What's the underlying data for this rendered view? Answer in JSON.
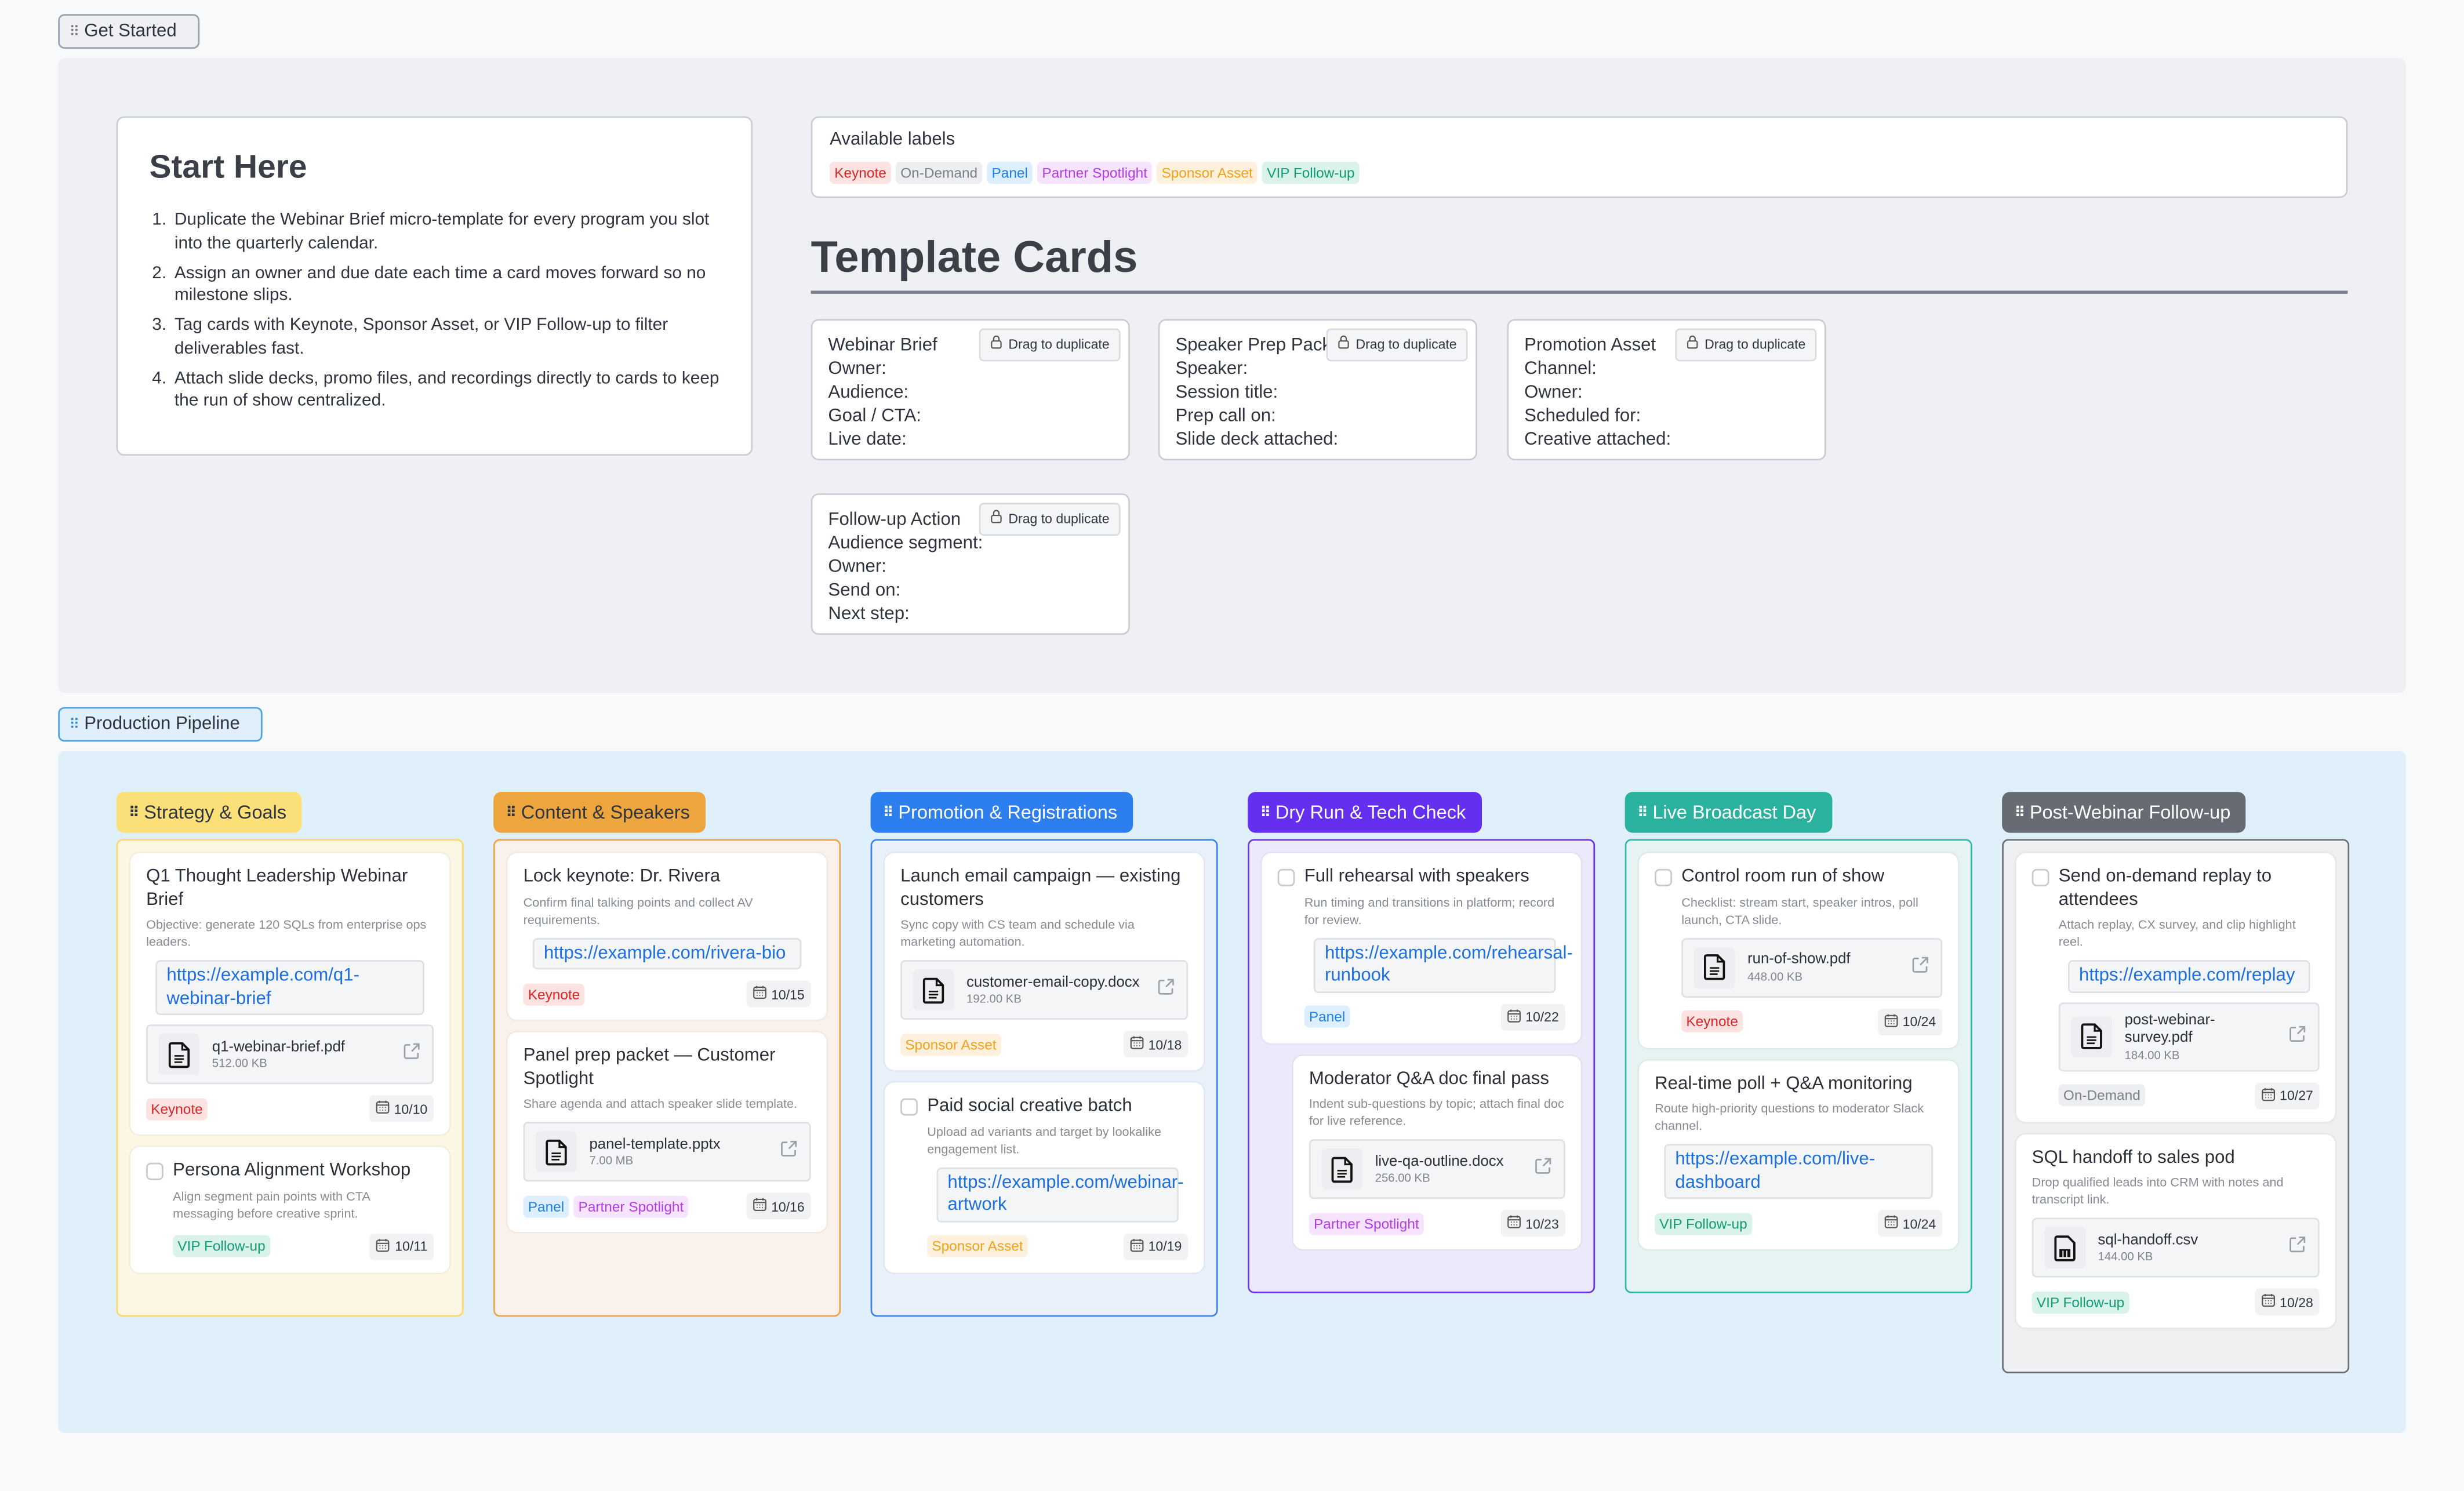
{
  "sections": {
    "get_started": "Get Started",
    "pipeline": "Production Pipeline"
  },
  "start_here": {
    "title": "Start Here",
    "steps": [
      "Duplicate the Webinar Brief micro-template for every program you slot into the quarterly calendar.",
      "Assign an owner and due date each time a card moves forward so no milestone slips.",
      "Tag cards with Keynote, Sponsor Asset, or VIP Follow-up to filter deliverables fast.",
      "Attach slide decks, promo files, and recordings directly to cards to keep the run of show centralized."
    ]
  },
  "labels": {
    "title": "Available labels",
    "items": [
      {
        "text": "Keynote",
        "kind": "keynote"
      },
      {
        "text": "On-Demand",
        "kind": "ondemand"
      },
      {
        "text": "Panel",
        "kind": "panel"
      },
      {
        "text": "Partner Spotlight",
        "kind": "partner"
      },
      {
        "text": "Sponsor Asset",
        "kind": "sponsor"
      },
      {
        "text": "VIP Follow-up",
        "kind": "vip"
      }
    ]
  },
  "template_cards": {
    "heading": "Template Cards",
    "drag_label": "Drag to duplicate",
    "cards": [
      {
        "title": "Webinar Brief",
        "fields": [
          "Owner:",
          "Audience:",
          "Goal / CTA:",
          "Live date:"
        ]
      },
      {
        "title": "Speaker Prep Pack",
        "fields": [
          "Speaker:",
          "Session title:",
          "Prep call on:",
          "Slide deck attached:"
        ]
      },
      {
        "title": "Promotion Asset",
        "fields": [
          "Channel:",
          "Owner:",
          "Scheduled for:",
          "Creative attached:"
        ]
      },
      {
        "title": "Follow-up Action",
        "fields": [
          "Audience segment:",
          "Owner:",
          "Send on:",
          "Next step:"
        ]
      }
    ]
  },
  "columns": [
    {
      "title": "Strategy & Goals",
      "color": "#fbe07a",
      "text_color": "#2f3440",
      "border": "#fcd96a",
      "bg": "#fcf6e4",
      "cards": [
        {
          "title": "Q1 Thought Leadership Webinar Brief",
          "desc": "Objective: generate 120 SQLs from enterprise ops leaders.",
          "link": "https://example.com/q1-webinar-brief",
          "file": {
            "name": "q1-webinar-brief.pdf",
            "size": "512.00 KB"
          },
          "tags": [
            {
              "text": "Keynote",
              "kind": "keynote"
            }
          ],
          "date": "10/10"
        },
        {
          "title": "Persona Alignment Workshop",
          "checkbox": true,
          "desc": "Align segment pain points with CTA messaging before creative sprint.",
          "tags": [
            {
              "text": "VIP Follow-up",
              "kind": "vip"
            }
          ],
          "date": "10/11"
        }
      ]
    },
    {
      "title": "Content & Speakers",
      "color": "#eda53d",
      "text_color": "#2f3440",
      "border": "#eea24a",
      "bg": "#faf2ea",
      "cards": [
        {
          "title": "Lock keynote: Dr. Rivera",
          "desc": "Confirm final talking points and collect AV requirements.",
          "link": "https://example.com/rivera-bio",
          "tags": [
            {
              "text": "Keynote",
              "kind": "keynote"
            }
          ],
          "date": "10/15"
        },
        {
          "title": "Panel prep packet — Customer Spotlight",
          "desc": "Share agenda and attach speaker slide template.",
          "file": {
            "name": "panel-template.pptx",
            "size": "7.00 MB"
          },
          "tags": [
            {
              "text": "Panel",
              "kind": "panel"
            },
            {
              "text": "Partner Spotlight",
              "kind": "partner"
            }
          ],
          "date": "10/16"
        }
      ]
    },
    {
      "title": "Promotion & Registrations",
      "color": "#2d7ff0",
      "text_color": "#ffffff",
      "border": "#3b84ea",
      "bg": "#e9f0fa",
      "cards": [
        {
          "title": "Launch email campaign — existing customers",
          "desc": "Sync copy with CS team and schedule via marketing automation.",
          "file": {
            "name": "customer-email-copy.docx",
            "size": "192.00 KB"
          },
          "tags": [
            {
              "text": "Sponsor Asset",
              "kind": "sponsor"
            }
          ],
          "date": "10/18"
        },
        {
          "title": "Paid social creative batch",
          "checkbox": true,
          "desc": "Upload ad variants and target by lookalike engagement list.",
          "link": "https://example.com/webinar-artwork",
          "tags": [
            {
              "text": "Sponsor Asset",
              "kind": "sponsor"
            }
          ],
          "date": "10/19"
        }
      ]
    },
    {
      "title": "Dry Run & Tech Check",
      "color": "#652ff0",
      "text_color": "#ffffff",
      "border": "#6a35e6",
      "bg": "#eee9fa",
      "cards": [
        {
          "title": "Full rehearsal with speakers",
          "checkbox": true,
          "desc": "Run timing and transitions in platform; record for review.",
          "link": "https://example.com/rehearsal-runbook",
          "tags": [
            {
              "text": "Panel",
              "kind": "panel"
            }
          ],
          "date": "10/22"
        },
        {
          "title": "Moderator Q&A doc final pass",
          "nested": true,
          "desc": "Indent sub-questions by topic; attach final doc for live reference.",
          "file": {
            "name": "live-qa-outline.docx",
            "size": "256.00 KB"
          },
          "tags": [
            {
              "text": "Partner Spotlight",
              "kind": "partner"
            }
          ],
          "date": "10/23"
        }
      ]
    },
    {
      "title": "Live Broadcast Day",
      "color": "#2bb29f",
      "text_color": "#ffffff",
      "border": "#36b5a4",
      "bg": "#e5f3f2",
      "cards": [
        {
          "title": "Control room run of show",
          "checkbox": true,
          "desc": "Checklist: stream start, speaker intros, poll launch, CTA slide.",
          "file": {
            "name": "run-of-show.pdf",
            "size": "448.00 KB"
          },
          "tags": [
            {
              "text": "Keynote",
              "kind": "keynote"
            }
          ],
          "date": "10/24"
        },
        {
          "title": "Real-time poll + Q&A monitoring",
          "desc": "Route high-priority questions to moderator Slack channel.",
          "link": "https://example.com/live-dashboard",
          "tags": [
            {
              "text": "VIP Follow-up",
              "kind": "vip"
            }
          ],
          "date": "10/24"
        }
      ]
    },
    {
      "title": "Post-Webinar Follow-up",
      "color": "#676b73",
      "text_color": "#ffffff",
      "border": "#6b6f77",
      "bg": "#eeeff1",
      "cards": [
        {
          "title": "Send on-demand replay to attendees",
          "checkbox": true,
          "desc": "Attach replay, CX survey, and clip highlight reel.",
          "link": "https://example.com/replay",
          "file": {
            "name": "post-webinar-survey.pdf",
            "size": "184.00 KB"
          },
          "tags": [
            {
              "text": "On-Demand",
              "kind": "ondemand"
            }
          ],
          "date": "10/27"
        },
        {
          "title": "SQL handoff to sales pod",
          "desc": "Drop qualified leads into CRM with notes and transcript link.",
          "file": {
            "name": "sql-handoff.csv",
            "size": "144.00 KB",
            "type": "sheet"
          },
          "tags": [
            {
              "text": "VIP Follow-up",
              "kind": "vip"
            }
          ],
          "date": "10/28"
        }
      ]
    }
  ]
}
